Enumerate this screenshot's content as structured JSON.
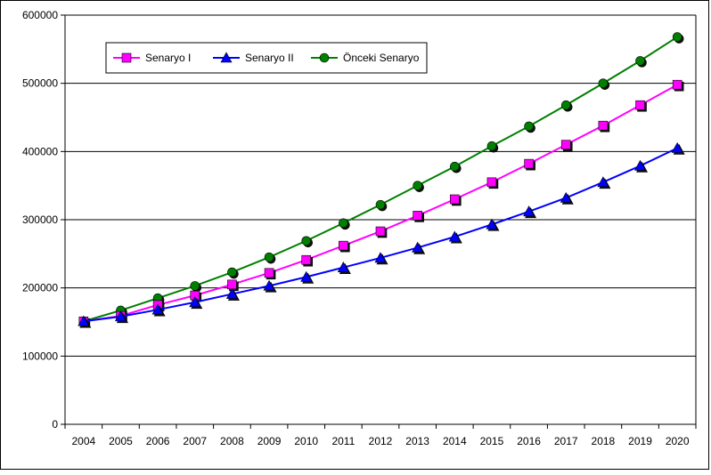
{
  "chart_data": {
    "type": "line",
    "title": "",
    "xlabel": "",
    "ylabel": "",
    "categories": [
      "2004",
      "2005",
      "2006",
      "2007",
      "2008",
      "2009",
      "2010",
      "2011",
      "2012",
      "2013",
      "2014",
      "2015",
      "2016",
      "2017",
      "2018",
      "2019",
      "2020"
    ],
    "ylim": [
      0,
      600000
    ],
    "yticks": [
      "0",
      "100000",
      "200000",
      "300000",
      "400000",
      "500000",
      "600000"
    ],
    "grid": "horizontal",
    "legend_position": "top-left",
    "series": [
      {
        "name": "Senaryo I",
        "color": "#ff00ff",
        "marker": "square",
        "values": [
          151000,
          159000,
          175000,
          189000,
          205000,
          222000,
          241000,
          262000,
          283000,
          306000,
          330000,
          355000,
          382000,
          410000,
          438000,
          468000,
          498000
        ]
      },
      {
        "name": "Senaryo II",
        "color": "#0000ff",
        "marker": "triangle",
        "values": [
          151000,
          158000,
          168000,
          179000,
          191000,
          203000,
          216000,
          230000,
          244000,
          259000,
          275000,
          293000,
          312000,
          332000,
          355000,
          379000,
          405000
        ]
      },
      {
        "name": "Önceki Senaryo",
        "color": "#008000",
        "marker": "circle",
        "values": [
          151000,
          167000,
          185000,
          203000,
          223000,
          245000,
          269000,
          295000,
          322000,
          350000,
          378000,
          408000,
          437000,
          468000,
          500000,
          533000,
          568000
        ]
      }
    ]
  }
}
